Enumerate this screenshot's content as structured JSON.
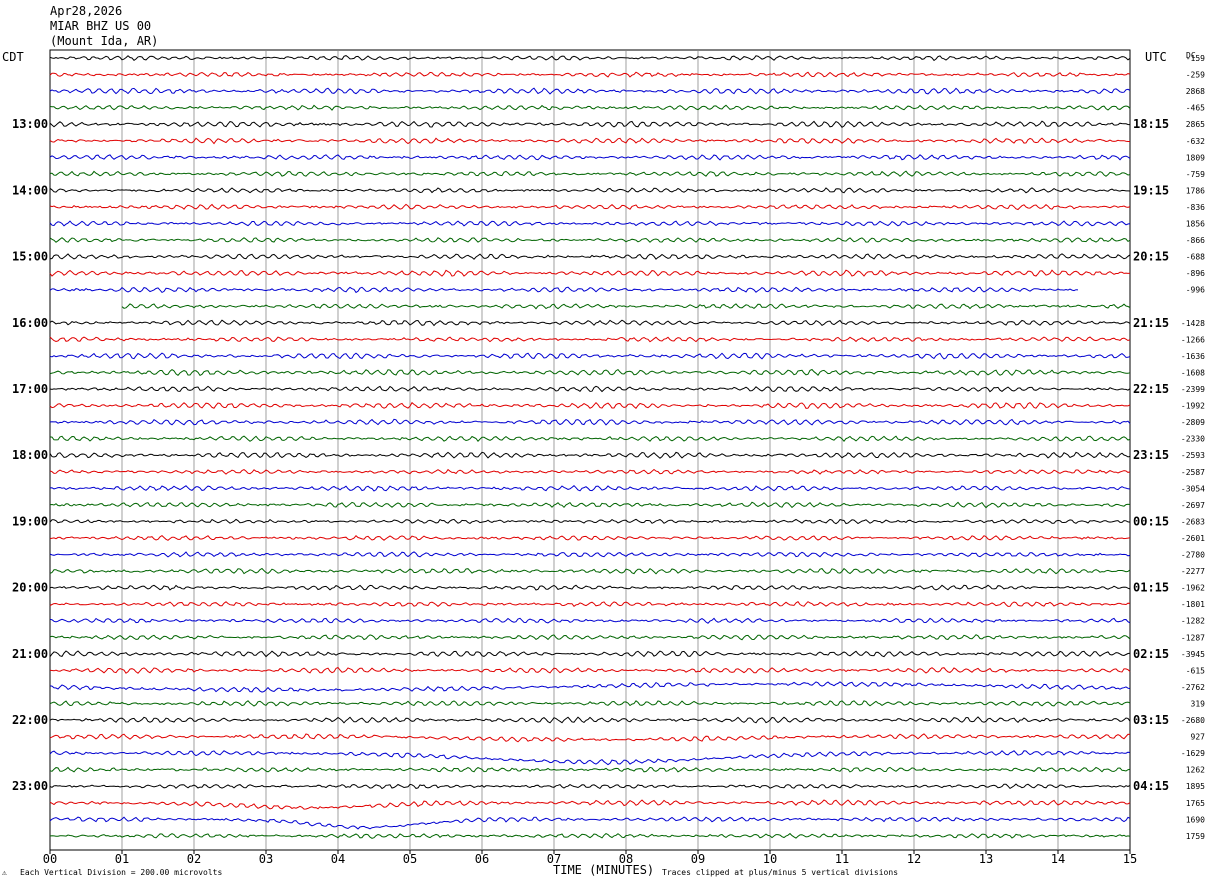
{
  "header": {
    "date": "Apr28,2026",
    "station": "MIAR BHZ US 00",
    "location": "(Mount Ida, AR)"
  },
  "axes": {
    "left_tz": "CDT",
    "right_tz": "UTC",
    "dc_label": "DC",
    "xlabel": "TIME (MINUTES)"
  },
  "footer": {
    "scale": "Each Vertical Division =  200.00 microvolts",
    "clip": "Traces clipped at plus/minus 5 vertical divisions",
    "mark": "⚠"
  },
  "colors": [
    "#000000",
    "#e00000",
    "#0000d0",
    "#006400"
  ],
  "chart_data": {
    "type": "line",
    "title": "MIAR BHZ US 00 (Mount Ida, AR) Apr28,2026",
    "xlabel": "TIME (MINUTES)",
    "x_ticks": [
      "00",
      "01",
      "02",
      "03",
      "04",
      "05",
      "06",
      "07",
      "08",
      "09",
      "10",
      "11",
      "12",
      "13",
      "14",
      "15"
    ],
    "xlim": [
      0,
      15
    ],
    "trace_interval_minutes": 15,
    "left_hour_labels": [
      "13:00",
      "14:00",
      "15:00",
      "16:00",
      "17:00",
      "18:00",
      "19:00",
      "20:00",
      "21:00",
      "22:00",
      "23:00"
    ],
    "right_hour_labels": [
      "18:15",
      "19:15",
      "20:15",
      "21:15",
      "22:15",
      "23:15",
      "00:15",
      "01:15",
      "02:15",
      "03:15",
      "04:15"
    ],
    "dc_offsets": [
      "-159",
      "-259",
      "2868",
      "-465",
      "2865",
      "-632",
      "1809",
      "-759",
      "1786",
      "-836",
      "1856",
      "-866",
      "-688",
      "-896",
      "-996",
      "",
      "-1428",
      "-1266",
      "-1636",
      "-1608",
      "-2399",
      "-1992",
      "-2809",
      "-2330",
      "-2593",
      "-2587",
      "-3054",
      "-2697",
      "-2683",
      "-2601",
      "-2780",
      "-2277",
      "-1962",
      "-1801",
      "-1282",
      "-1287",
      "-3945",
      "-615",
      "-2762",
      "319",
      "-2680",
      "927",
      "-1629",
      "1262",
      "1895",
      "1765",
      "1690",
      "1759"
    ],
    "scale": "Each Vertical Division =  200.00 microvolts",
    "clip_note": "Traces clipped at plus/minus 5 vertical divisions",
    "trace_count": 48
  }
}
